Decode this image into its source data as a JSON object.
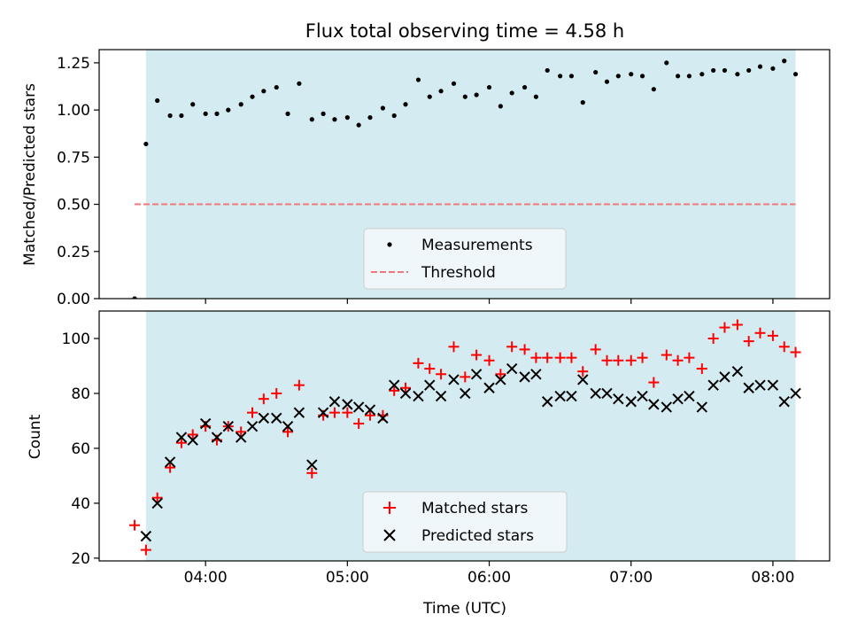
{
  "chart_data": [
    {
      "type": "scatter",
      "title": "Flux total observing time = 4.58 h",
      "ylabel": "Matched/Predicted stars",
      "xlabel": "",
      "x_unit": "hours_utc",
      "xlim": [
        3.25,
        8.4
      ],
      "ylim": [
        0,
        1.32
      ],
      "yticks": [
        0.0,
        0.25,
        0.5,
        0.75,
        1.0,
        1.25
      ],
      "ytick_labels": [
        "0.00",
        "0.25",
        "0.50",
        "0.75",
        "1.00",
        "1.25"
      ],
      "xticks": [
        4,
        5,
        6,
        7,
        8
      ],
      "observing_window": [
        3.58,
        8.16
      ],
      "threshold": 0.5,
      "threshold_range": [
        3.5,
        8.16
      ],
      "legend_position": "bottom-center",
      "legend": [
        "Measurements",
        "Threshold"
      ],
      "series": [
        {
          "name": "Measurements",
          "x": [
            3.5,
            3.58,
            3.66,
            3.75,
            3.83,
            3.91,
            4.0,
            4.08,
            4.16,
            4.25,
            4.33,
            4.41,
            4.5,
            4.58,
            4.66,
            4.75,
            4.83,
            4.91,
            5.0,
            5.08,
            5.16,
            5.25,
            5.33,
            5.41,
            5.5,
            5.58,
            5.66,
            5.75,
            5.83,
            5.91,
            6.0,
            6.08,
            6.16,
            6.25,
            6.33,
            6.41,
            6.5,
            6.58,
            6.66,
            6.75,
            6.83,
            6.91,
            7.0,
            7.08,
            7.16,
            7.25,
            7.33,
            7.41,
            7.5,
            7.58,
            7.66,
            7.75,
            7.83,
            7.91,
            8.0,
            8.08,
            8.16
          ],
          "y": [
            0.0,
            0.82,
            1.05,
            0.97,
            0.97,
            1.03,
            0.98,
            0.98,
            1.0,
            1.03,
            1.07,
            1.1,
            1.12,
            0.98,
            1.14,
            0.95,
            0.98,
            0.95,
            0.96,
            0.92,
            0.96,
            1.01,
            0.97,
            1.03,
            1.16,
            1.07,
            1.1,
            1.14,
            1.07,
            1.08,
            1.12,
            1.02,
            1.09,
            1.12,
            1.07,
            1.21,
            1.18,
            1.18,
            1.04,
            1.2,
            1.15,
            1.18,
            1.19,
            1.18,
            1.11,
            1.25,
            1.18,
            1.18,
            1.19,
            1.21,
            1.21,
            1.19,
            1.21,
            1.23,
            1.22,
            1.26,
            1.19
          ]
        }
      ]
    },
    {
      "type": "scatter",
      "title": "",
      "ylabel": "Count",
      "xlabel": "Time (UTC)",
      "x_unit": "hours_utc",
      "xlim": [
        3.25,
        8.4
      ],
      "ylim": [
        19,
        110
      ],
      "yticks": [
        20,
        40,
        60,
        80,
        100
      ],
      "ytick_labels": [
        "20",
        "40",
        "60",
        "80",
        "100"
      ],
      "xticks": [
        4,
        5,
        6,
        7,
        8
      ],
      "xtick_labels": [
        "04:00",
        "05:00",
        "06:00",
        "07:00",
        "08:00"
      ],
      "observing_window": [
        3.58,
        8.16
      ],
      "legend_position": "bottom-center",
      "legend": [
        "Matched stars",
        "Predicted stars"
      ],
      "series": [
        {
          "name": "Matched stars",
          "x": [
            3.5,
            3.58,
            3.66,
            3.75,
            3.83,
            3.91,
            4.0,
            4.08,
            4.16,
            4.25,
            4.33,
            4.41,
            4.5,
            4.58,
            4.66,
            4.75,
            4.83,
            4.91,
            5.0,
            5.08,
            5.16,
            5.25,
            5.33,
            5.41,
            5.5,
            5.58,
            5.66,
            5.75,
            5.83,
            5.91,
            6.0,
            6.08,
            6.16,
            6.25,
            6.33,
            6.41,
            6.5,
            6.58,
            6.66,
            6.75,
            6.83,
            6.91,
            7.0,
            7.08,
            7.16,
            7.25,
            7.33,
            7.41,
            7.5,
            7.58,
            7.66,
            7.75,
            7.83,
            7.91,
            8.0,
            8.08,
            8.16
          ],
          "y": [
            32,
            23,
            42,
            53,
            62,
            65,
            68,
            63,
            68,
            66,
            73,
            78,
            80,
            66,
            83,
            51,
            72,
            73,
            73,
            69,
            72,
            72,
            81,
            82,
            91,
            89,
            87,
            97,
            86,
            94,
            92,
            87,
            97,
            96,
            93,
            93,
            93,
            93,
            88,
            96,
            92,
            92,
            92,
            93,
            84,
            94,
            92,
            93,
            89,
            100,
            104,
            105,
            99,
            102,
            101,
            97,
            95
          ]
        },
        {
          "name": "Predicted stars",
          "x": [
            3.58,
            3.66,
            3.75,
            3.83,
            3.91,
            4.0,
            4.08,
            4.16,
            4.25,
            4.33,
            4.41,
            4.5,
            4.58,
            4.66,
            4.75,
            4.83,
            4.91,
            5.0,
            5.08,
            5.16,
            5.25,
            5.33,
            5.41,
            5.5,
            5.58,
            5.66,
            5.75,
            5.83,
            5.91,
            6.0,
            6.08,
            6.16,
            6.25,
            6.33,
            6.41,
            6.5,
            6.58,
            6.66,
            6.75,
            6.83,
            6.91,
            7.0,
            7.08,
            7.16,
            7.25,
            7.33,
            7.41,
            7.5,
            7.58,
            7.66,
            7.75,
            7.83,
            7.91,
            8.0,
            8.08,
            8.16
          ],
          "y": [
            28,
            40,
            55,
            64,
            63,
            69,
            64,
            68,
            64,
            68,
            71,
            71,
            68,
            73,
            54,
            73,
            77,
            76,
            75,
            74,
            71,
            83,
            80,
            79,
            83,
            79,
            85,
            80,
            87,
            82,
            85,
            89,
            86,
            87,
            77,
            79,
            79,
            85,
            80,
            80,
            78,
            77,
            79,
            76,
            75,
            78,
            79,
            75,
            83,
            86,
            88,
            82,
            83,
            83,
            77,
            80
          ]
        }
      ]
    }
  ],
  "colors": {
    "band": "#d4ebf1",
    "measurement": "#000000",
    "threshold": "#f07878",
    "matched": "#ff0000",
    "predicted": "#000000"
  }
}
